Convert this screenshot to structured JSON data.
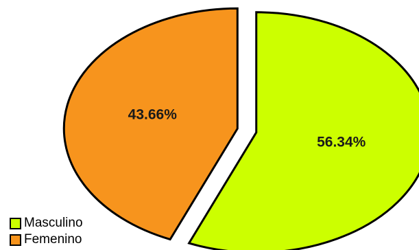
{
  "chart_data": {
    "type": "pie",
    "categories": [
      "Masculino",
      "Femenino"
    ],
    "values": [
      56.34,
      43.66
    ],
    "labels": [
      "56.34%",
      "43.66%"
    ],
    "colors": [
      "#CCFF00",
      "#F7941D"
    ],
    "exploded": true,
    "legend": {
      "position": "bottom-left",
      "entries": [
        "Masculino",
        "Femenino"
      ]
    }
  }
}
